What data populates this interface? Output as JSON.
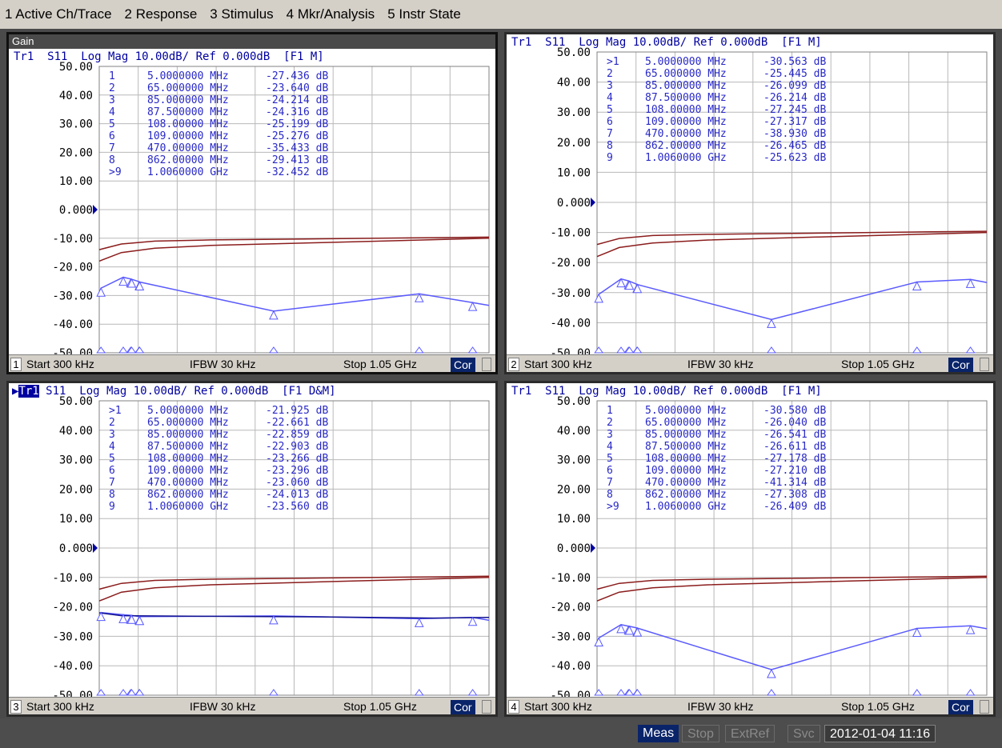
{
  "menu": [
    "1 Active Ch/Trace",
    "2 Response",
    "3 Stimulus",
    "4 Mkr/Analysis",
    "5 Instr State"
  ],
  "colors": {
    "trace1": "#5a5aff",
    "trace_dark": "#101090",
    "mem": "#8b1c1c",
    "grid": "#b8b8b8",
    "marker": "#5a5aff"
  },
  "y_labels": [
    "50.00",
    "40.00",
    "30.00",
    "20.00",
    "10.00",
    "0.000",
    "-10.00",
    "-20.00",
    "-30.00",
    "-40.00",
    "-50.00"
  ],
  "windows": [
    {
      "id": 1,
      "title": "Gain",
      "header": "Tr1  S11  Log Mag 10.00dB/ Ref 0.000dB  [F1 M]",
      "header_prefix": "",
      "markers": [
        {
          "n": "1",
          "f": "5.0000000 MHz",
          "v": "-27.436 dB"
        },
        {
          "n": "2",
          "f": "65.000000 MHz",
          "v": "-23.640 dB"
        },
        {
          "n": "3",
          "f": "85.000000 MHz",
          "v": "-24.214 dB"
        },
        {
          "n": "4",
          "f": "87.500000 MHz",
          "v": "-24.316 dB"
        },
        {
          "n": "5",
          "f": "108.00000 MHz",
          "v": "-25.199 dB"
        },
        {
          "n": "6",
          "f": "109.00000 MHz",
          "v": "-25.276 dB"
        },
        {
          "n": "7",
          "f": "470.00000 MHz",
          "v": "-35.433 dB"
        },
        {
          "n": "8",
          "f": "862.00000 MHz",
          "v": "-29.413 dB"
        },
        {
          "n": ">9",
          "f": "1.0060000 GHz",
          "v": "-32.452 dB"
        }
      ],
      "status": {
        "ch": "1",
        "start": "Start 300 kHz",
        "ifbw": "IFBW 30 kHz",
        "stop": "Stop 1.05 GHz",
        "cor": "Cor"
      }
    },
    {
      "id": 2,
      "title": "",
      "header": "Tr1  S11  Log Mag 10.00dB/ Ref 0.000dB  [F1 M]",
      "header_prefix": "",
      "markers": [
        {
          "n": ">1",
          "f": "5.0000000 MHz",
          "v": "-30.563 dB"
        },
        {
          "n": "2",
          "f": "65.000000 MHz",
          "v": "-25.445 dB"
        },
        {
          "n": "3",
          "f": "85.000000 MHz",
          "v": "-26.099 dB"
        },
        {
          "n": "4",
          "f": "87.500000 MHz",
          "v": "-26.214 dB"
        },
        {
          "n": "5",
          "f": "108.00000 MHz",
          "v": "-27.245 dB"
        },
        {
          "n": "6",
          "f": "109.00000 MHz",
          "v": "-27.317 dB"
        },
        {
          "n": "7",
          "f": "470.00000 MHz",
          "v": "-38.930 dB"
        },
        {
          "n": "8",
          "f": "862.00000 MHz",
          "v": "-26.465 dB"
        },
        {
          "n": "9",
          "f": "1.0060000 GHz",
          "v": "-25.623 dB"
        }
      ],
      "status": {
        "ch": "2",
        "start": "Start 300 kHz",
        "ifbw": "IFBW 30 kHz",
        "stop": "Stop 1.05 GHz",
        "cor": "Cor"
      }
    },
    {
      "id": 3,
      "title": "",
      "header": " S11  Log Mag 10.00dB/ Ref 0.000dB  [F1 D&M]",
      "header_prefix": "Tr1",
      "markers": [
        {
          "n": ">1",
          "f": "5.0000000 MHz",
          "v": "-21.925 dB"
        },
        {
          "n": "2",
          "f": "65.000000 MHz",
          "v": "-22.661 dB"
        },
        {
          "n": "3",
          "f": "85.000000 MHz",
          "v": "-22.859 dB"
        },
        {
          "n": "4",
          "f": "87.500000 MHz",
          "v": "-22.903 dB"
        },
        {
          "n": "5",
          "f": "108.00000 MHz",
          "v": "-23.266 dB"
        },
        {
          "n": "6",
          "f": "109.00000 MHz",
          "v": "-23.296 dB"
        },
        {
          "n": "7",
          "f": "470.00000 MHz",
          "v": "-23.060 dB"
        },
        {
          "n": "8",
          "f": "862.00000 MHz",
          "v": "-24.013 dB"
        },
        {
          "n": "9",
          "f": "1.0060000 GHz",
          "v": "-23.560 dB"
        }
      ],
      "status": {
        "ch": "3",
        "start": "Start 300 kHz",
        "ifbw": "IFBW 30 kHz",
        "stop": "Stop 1.05 GHz",
        "cor": "Cor"
      }
    },
    {
      "id": 4,
      "title": "",
      "header": "Tr1  S11  Log Mag 10.00dB/ Ref 0.000dB  [F1 M]",
      "header_prefix": "",
      "markers": [
        {
          "n": "1",
          "f": "5.0000000 MHz",
          "v": "-30.580 dB"
        },
        {
          "n": "2",
          "f": "65.000000 MHz",
          "v": "-26.040 dB"
        },
        {
          "n": "3",
          "f": "85.000000 MHz",
          "v": "-26.541 dB"
        },
        {
          "n": "4",
          "f": "87.500000 MHz",
          "v": "-26.611 dB"
        },
        {
          "n": "5",
          "f": "108.00000 MHz",
          "v": "-27.178 dB"
        },
        {
          "n": "6",
          "f": "109.00000 MHz",
          "v": "-27.210 dB"
        },
        {
          "n": "7",
          "f": "470.00000 MHz",
          "v": "-41.314 dB"
        },
        {
          "n": "8",
          "f": "862.00000 MHz",
          "v": "-27.308 dB"
        },
        {
          "n": ">9",
          "f": "1.0060000 GHz",
          "v": "-26.409 dB"
        }
      ],
      "status": {
        "ch": "4",
        "start": "Start 300 kHz",
        "ifbw": "IFBW 30 kHz",
        "stop": "Stop 1.05 GHz",
        "cor": "Cor"
      }
    }
  ],
  "bottom": {
    "meas": "Meas",
    "stop": "Stop",
    "extref": "ExtRef",
    "svc": "Svc",
    "datetime": "2012-01-04 11:16"
  },
  "chart_data": [
    {
      "type": "line",
      "x_range_mhz": [
        0.3,
        1050
      ],
      "ylim": [
        -50,
        50
      ],
      "series": [
        {
          "name": "Tr1",
          "markers_mhz": [
            5,
            65,
            85,
            87.5,
            108,
            109,
            470,
            862,
            1006
          ],
          "values": [
            -27.436,
            -23.64,
            -24.214,
            -24.316,
            -25.199,
            -25.276,
            -35.433,
            -29.413,
            -32.452
          ]
        }
      ]
    },
    {
      "type": "line",
      "x_range_mhz": [
        0.3,
        1050
      ],
      "ylim": [
        -50,
        50
      ],
      "series": [
        {
          "name": "Tr1",
          "markers_mhz": [
            5,
            65,
            85,
            87.5,
            108,
            109,
            470,
            862,
            1006
          ],
          "values": [
            -30.563,
            -25.445,
            -26.099,
            -26.214,
            -27.245,
            -27.317,
            -38.93,
            -26.465,
            -25.623
          ]
        }
      ]
    },
    {
      "type": "line",
      "x_range_mhz": [
        0.3,
        1050
      ],
      "ylim": [
        -50,
        50
      ],
      "series": [
        {
          "name": "Tr1",
          "markers_mhz": [
            5,
            65,
            85,
            87.5,
            108,
            109,
            470,
            862,
            1006
          ],
          "values": [
            -21.925,
            -22.661,
            -22.859,
            -22.903,
            -23.266,
            -23.296,
            -23.06,
            -24.013,
            -23.56
          ]
        }
      ]
    },
    {
      "type": "line",
      "x_range_mhz": [
        0.3,
        1050
      ],
      "ylim": [
        -50,
        50
      ],
      "series": [
        {
          "name": "Tr1",
          "markers_mhz": [
            5,
            65,
            85,
            87.5,
            108,
            109,
            470,
            862,
            1006
          ],
          "values": [
            -30.58,
            -26.04,
            -26.541,
            -26.611,
            -27.178,
            -27.21,
            -41.314,
            -27.308,
            -26.409
          ]
        }
      ]
    }
  ]
}
